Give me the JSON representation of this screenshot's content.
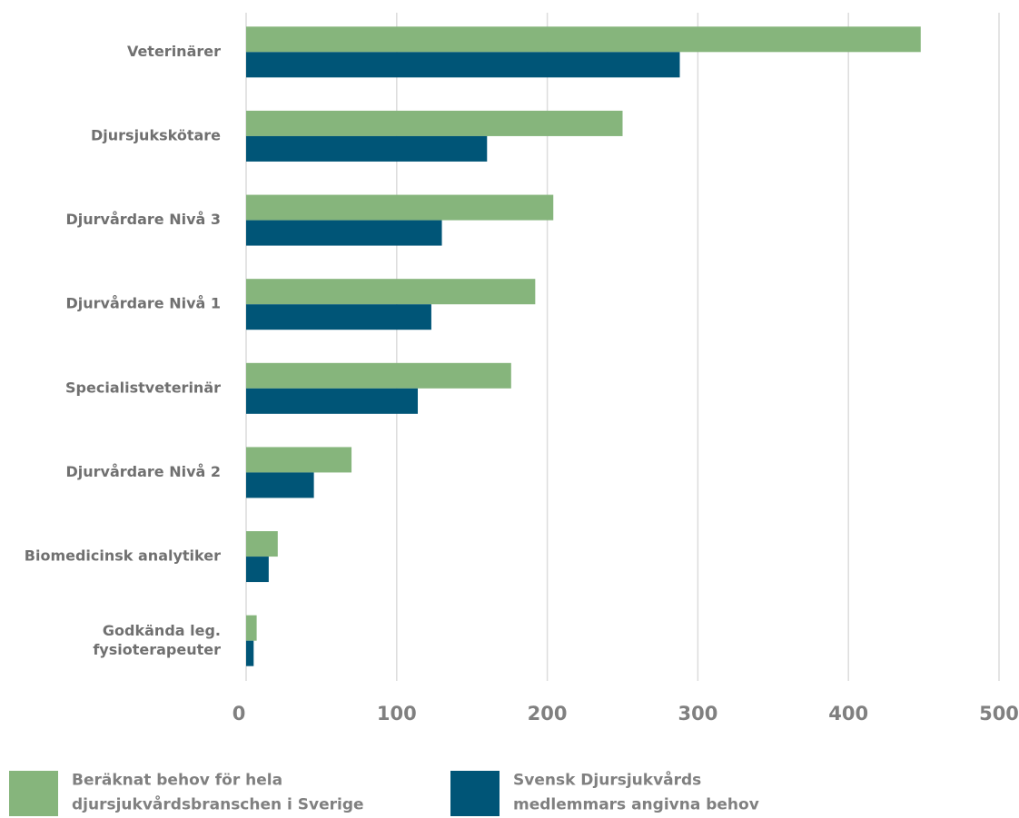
{
  "chart_data": {
    "type": "bar",
    "orientation": "horizontal",
    "categories": [
      "Veterinärer",
      "Djursjukskötare",
      "Djurvårdare Nivå 3",
      "Djurvårdare Nivå 1",
      "Specialistveterinär",
      "Djurvårdare Nivå 2",
      "Biomedicinsk analytiker",
      "Godkända leg.\nfysioterapeuter"
    ],
    "series": [
      {
        "name": "Beräknat behov för hela\ndjursjukvårdsbranschen i Sverige",
        "color": "#86b57c",
        "values": [
          448,
          250,
          204,
          192,
          176,
          70,
          21,
          7
        ]
      },
      {
        "name": "Svensk Djursjukvårds\nmedlemmars angivna behov",
        "color": "#005577",
        "values": [
          288,
          160,
          130,
          123,
          114,
          45,
          15,
          5
        ]
      }
    ],
    "xlim": [
      0,
      500
    ],
    "xticks": [
      0,
      100,
      200,
      300,
      400,
      500
    ],
    "grid": true,
    "legend": "bottom"
  }
}
